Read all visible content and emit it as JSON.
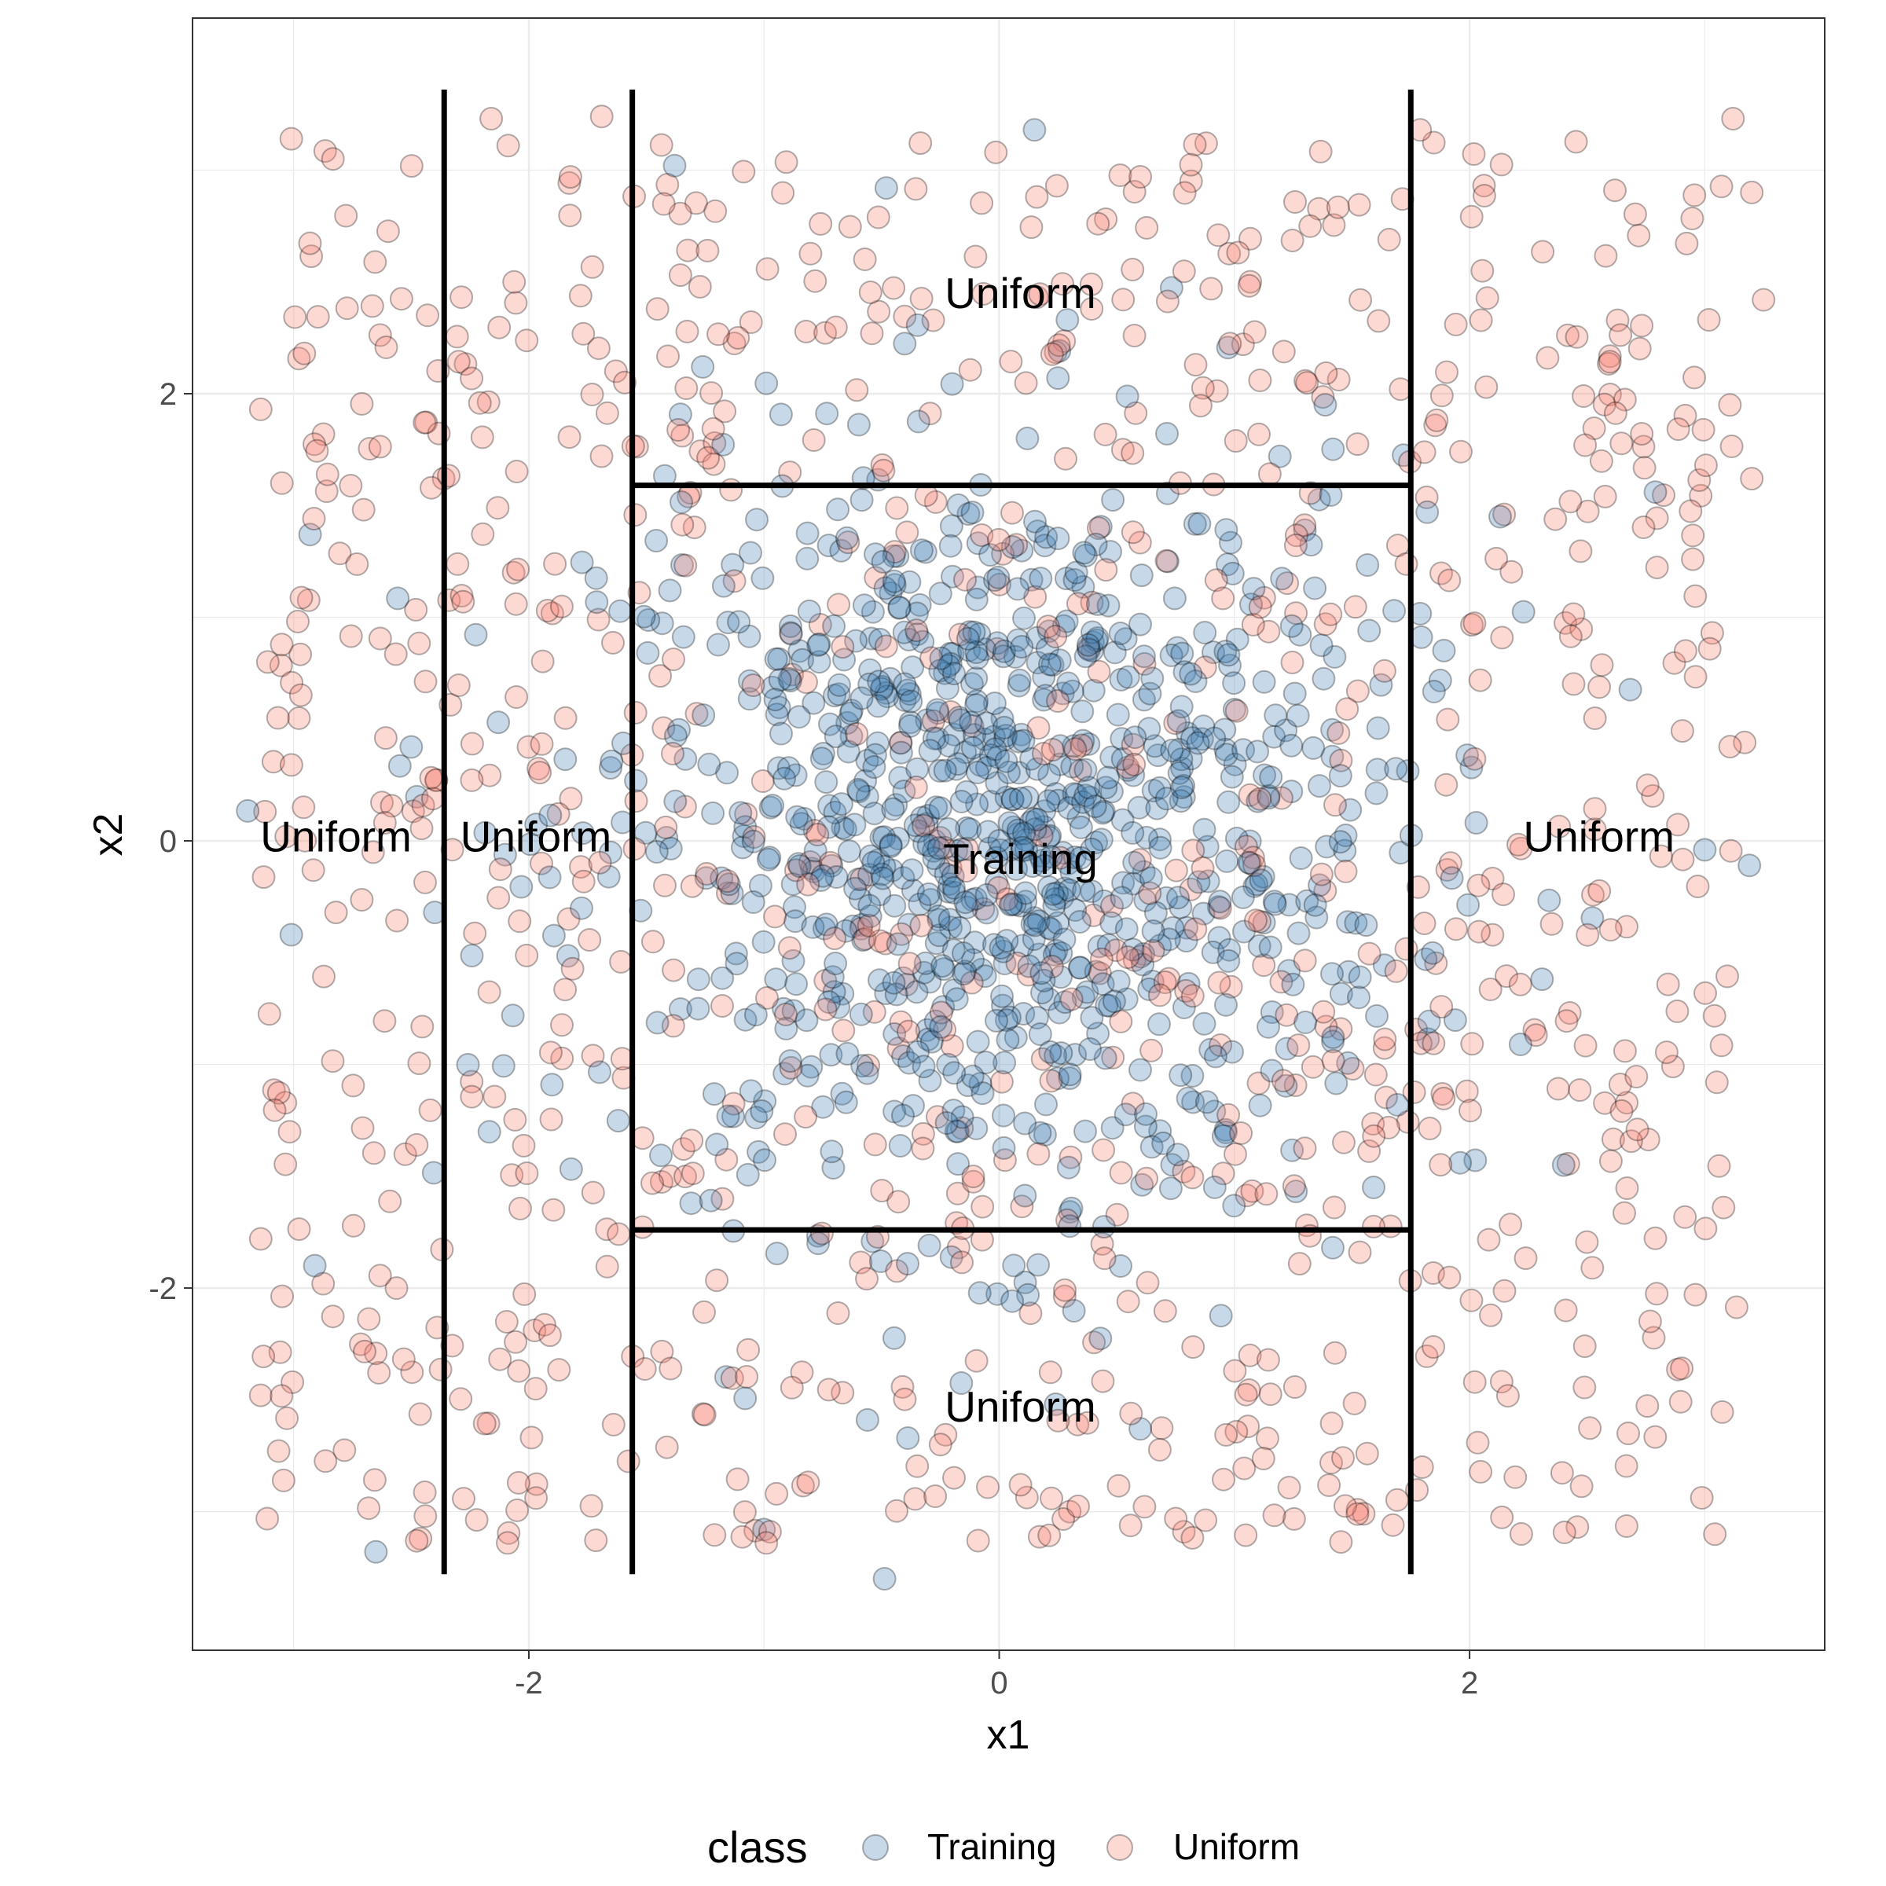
{
  "chart_data": {
    "type": "scatter",
    "title": "",
    "xlabel": "x1",
    "ylabel": "x2",
    "xlim": [
      -3.43,
      3.51
    ],
    "ylim": [
      -3.62,
      3.68
    ],
    "x_ticks": [
      -2,
      0,
      2
    ],
    "y_ticks": [
      -2,
      0,
      2
    ],
    "x_tick_labels": [
      "-2",
      "0",
      "2"
    ],
    "y_tick_labels": [
      "-2",
      "0",
      "2"
    ],
    "grid": true,
    "legend": {
      "title": "class",
      "position": "bottom",
      "entries": [
        {
          "name": "Training",
          "color": "#4682B4"
        },
        {
          "name": "Uniform",
          "color": "#FA8072"
        }
      ]
    },
    "boundaries": [
      {
        "x": [
          -2.36,
          -2.36
        ],
        "y": [
          -3.28,
          3.36
        ]
      },
      {
        "x": [
          -1.56,
          -1.56
        ],
        "y": [
          -3.28,
          3.36
        ]
      },
      {
        "x": [
          1.75,
          1.75
        ],
        "y": [
          -3.28,
          3.36
        ]
      },
      {
        "x": [
          -1.56,
          1.75
        ],
        "y": [
          1.59,
          1.59
        ]
      },
      {
        "x": [
          -1.56,
          1.75
        ],
        "y": [
          -1.74,
          -1.74
        ]
      }
    ],
    "region_labels": [
      {
        "text": "Uniform",
        "x": 0.09,
        "y": 2.45
      },
      {
        "text": "Uniform",
        "x": -2.82,
        "y": 0.02
      },
      {
        "text": "Uniform",
        "x": -1.97,
        "y": 0.02
      },
      {
        "text": "Training",
        "x": 0.09,
        "y": -0.08
      },
      {
        "text": "Uniform",
        "x": 2.55,
        "y": 0.02
      },
      {
        "text": "Uniform",
        "x": 0.09,
        "y": -2.53
      }
    ],
    "series": [
      {
        "name": "Training",
        "n_points": 1000,
        "distribution": "bivariate normal, mean [0,0], sd [0.85,0.85]",
        "sample_points": [
          {
            "x": 0.15,
            "y": 3.18
          },
          {
            "x": -1.38,
            "y": 3.02
          },
          {
            "x": -0.48,
            "y": 2.92
          },
          {
            "x": 0.29,
            "y": 2.33
          },
          {
            "x": 0.25,
            "y": 2.07
          },
          {
            "x": -1.4,
            "y": 1.12
          },
          {
            "x": -2.93,
            "y": 1.37
          },
          {
            "x": -3.01,
            "y": -0.42
          },
          {
            "x": -2.91,
            "y": -1.9
          },
          {
            "x": -2.65,
            "y": -3.18
          },
          {
            "x": -2.5,
            "y": 0.42
          },
          {
            "x": -2.4,
            "y": -0.32
          },
          {
            "x": -2.13,
            "y": 0.53
          },
          {
            "x": -1.66,
            "y": -0.16
          },
          {
            "x": 1.82,
            "y": 1.47
          },
          {
            "x": 2.13,
            "y": 1.45
          },
          {
            "x": 2.79,
            "y": 1.56
          },
          {
            "x": 3.0,
            "y": -0.04
          },
          {
            "x": 3.19,
            "y": -0.11
          },
          {
            "x": 1.96,
            "y": -1.44
          },
          {
            "x": 2.4,
            "y": -1.45
          },
          {
            "x": -1.0,
            "y": -3.08
          },
          {
            "x": 0.24,
            "y": -2.52
          },
          {
            "x": -0.56,
            "y": -2.59
          },
          {
            "x": 0.6,
            "y": -2.63
          },
          {
            "x": 0.0,
            "y": 0.0
          },
          {
            "x": 0.12,
            "y": 1.8
          },
          {
            "x": -0.7,
            "y": 0.65
          }
        ]
      },
      {
        "name": "Uniform",
        "n_points": 1000,
        "distribution": "uniform on [-3.14,3.14] x [-3.14,3.14]",
        "sample_points": [
          {
            "x": -3.01,
            "y": 3.14
          },
          {
            "x": -2.16,
            "y": 3.23
          },
          {
            "x": -1.69,
            "y": 3.24
          },
          {
            "x": 1.79,
            "y": 3.18
          },
          {
            "x": 3.12,
            "y": 3.23
          },
          {
            "x": 3.2,
            "y": 2.9
          },
          {
            "x": -3.14,
            "y": 1.93
          },
          {
            "x": -3.05,
            "y": 1.6
          },
          {
            "x": -3.11,
            "y": 0.8
          },
          {
            "x": -2.82,
            "y": -0.32
          },
          {
            "x": -3.14,
            "y": -1.78
          },
          {
            "x": -3.14,
            "y": -2.48
          },
          {
            "x": -2.44,
            "y": -3.02
          },
          {
            "x": -2.09,
            "y": -3.14
          },
          {
            "x": -0.99,
            "y": -3.14
          },
          {
            "x": 0.3,
            "y": -3.0
          },
          {
            "x": 1.55,
            "y": -3.01
          },
          {
            "x": 2.22,
            "y": -3.1
          },
          {
            "x": 2.96,
            "y": -2.03
          },
          {
            "x": 3.08,
            "y": -1.64
          },
          {
            "x": 3.17,
            "y": 0.44
          },
          {
            "x": 3.2,
            "y": 1.62
          },
          {
            "x": 3.25,
            "y": 2.42
          },
          {
            "x": 2.49,
            "y": -2.26
          },
          {
            "x": 0.6,
            "y": 2.97
          },
          {
            "x": -1.24,
            "y": 2.64
          },
          {
            "x": 0.16,
            "y": 2.88
          },
          {
            "x": 0.88,
            "y": 3.12
          }
        ]
      }
    ]
  }
}
